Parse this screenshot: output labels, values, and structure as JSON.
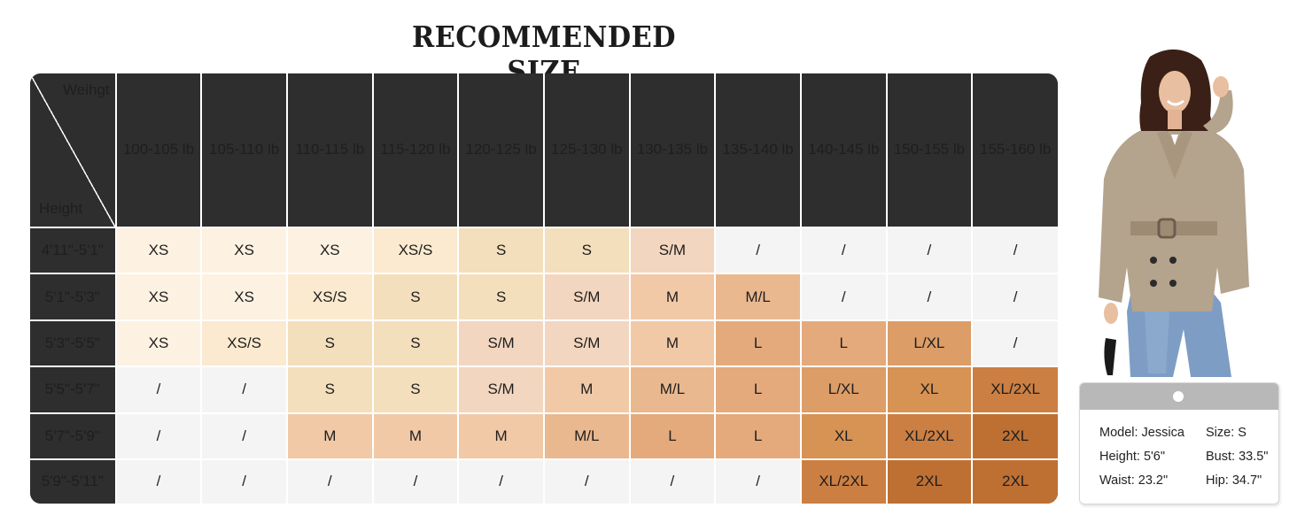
{
  "title": "RECOMMENDED SIZE",
  "table": {
    "corner": {
      "weight_label": "Weihgt",
      "height_label": "Height"
    },
    "weights": [
      "100-105 lb",
      "105-110 lb",
      "110-115 lb",
      "115-120 lb",
      "120-125 lb",
      "125-130 lb",
      "130-135 lb",
      "135-140 lb",
      "140-145 lb",
      "150-155 lb",
      "155-160 lb"
    ],
    "rows": [
      {
        "height": "4'11\"-5'1\"",
        "sizes": [
          "XS",
          "XS",
          "XS",
          "XS/S",
          "S",
          "S",
          "S/M",
          "/",
          "/",
          "/",
          "/"
        ]
      },
      {
        "height": "5'1\"-5'3\"",
        "sizes": [
          "XS",
          "XS",
          "XS/S",
          "S",
          "S",
          "S/M",
          "M",
          "M/L",
          "/",
          "/",
          "/"
        ]
      },
      {
        "height": "5'3\"-5'5\"",
        "sizes": [
          "XS",
          "XS/S",
          "S",
          "S",
          "S/M",
          "S/M",
          "M",
          "L",
          "L",
          "L/XL",
          "/"
        ]
      },
      {
        "height": "5'5\"-5'7\"",
        "sizes": [
          "/",
          "/",
          "S",
          "S",
          "S/M",
          "M",
          "M/L",
          "L",
          "L/XL",
          "XL",
          "XL/2XL"
        ]
      },
      {
        "height": "5'7\"-5'9\"",
        "sizes": [
          "/",
          "/",
          "M",
          "M",
          "M",
          "M/L",
          "L",
          "L",
          "XL",
          "XL/2XL",
          "2XL"
        ]
      },
      {
        "height": "5'9\"-5'11\"",
        "sizes": [
          "/",
          "/",
          "/",
          "/",
          "/",
          "/",
          "/",
          "/",
          "XL/2XL",
          "2XL",
          "2XL"
        ]
      }
    ]
  },
  "size_colors": {
    "XS": "#fdf1e1",
    "XS/S": "#fbeacf",
    "S": "#f4dfbc",
    "S/M": "#f3d6bf",
    "M": "#f1c9a7",
    "M/L": "#eab88f",
    "L": "#e4aa7c",
    "L/XL": "#dc9d67",
    "XL": "#d79354",
    "XL/2XL": "#cc7f42",
    "2XL": "#be7033",
    "/": "#f4f4f4"
  },
  "model": {
    "name": "Model: Jessica",
    "size": "Size: S",
    "height": "Height: 5'6\"",
    "bust": "Bust: 33.5\"",
    "waist": "Waist: 23.2\"",
    "hip": "Hip: 34.7\""
  }
}
